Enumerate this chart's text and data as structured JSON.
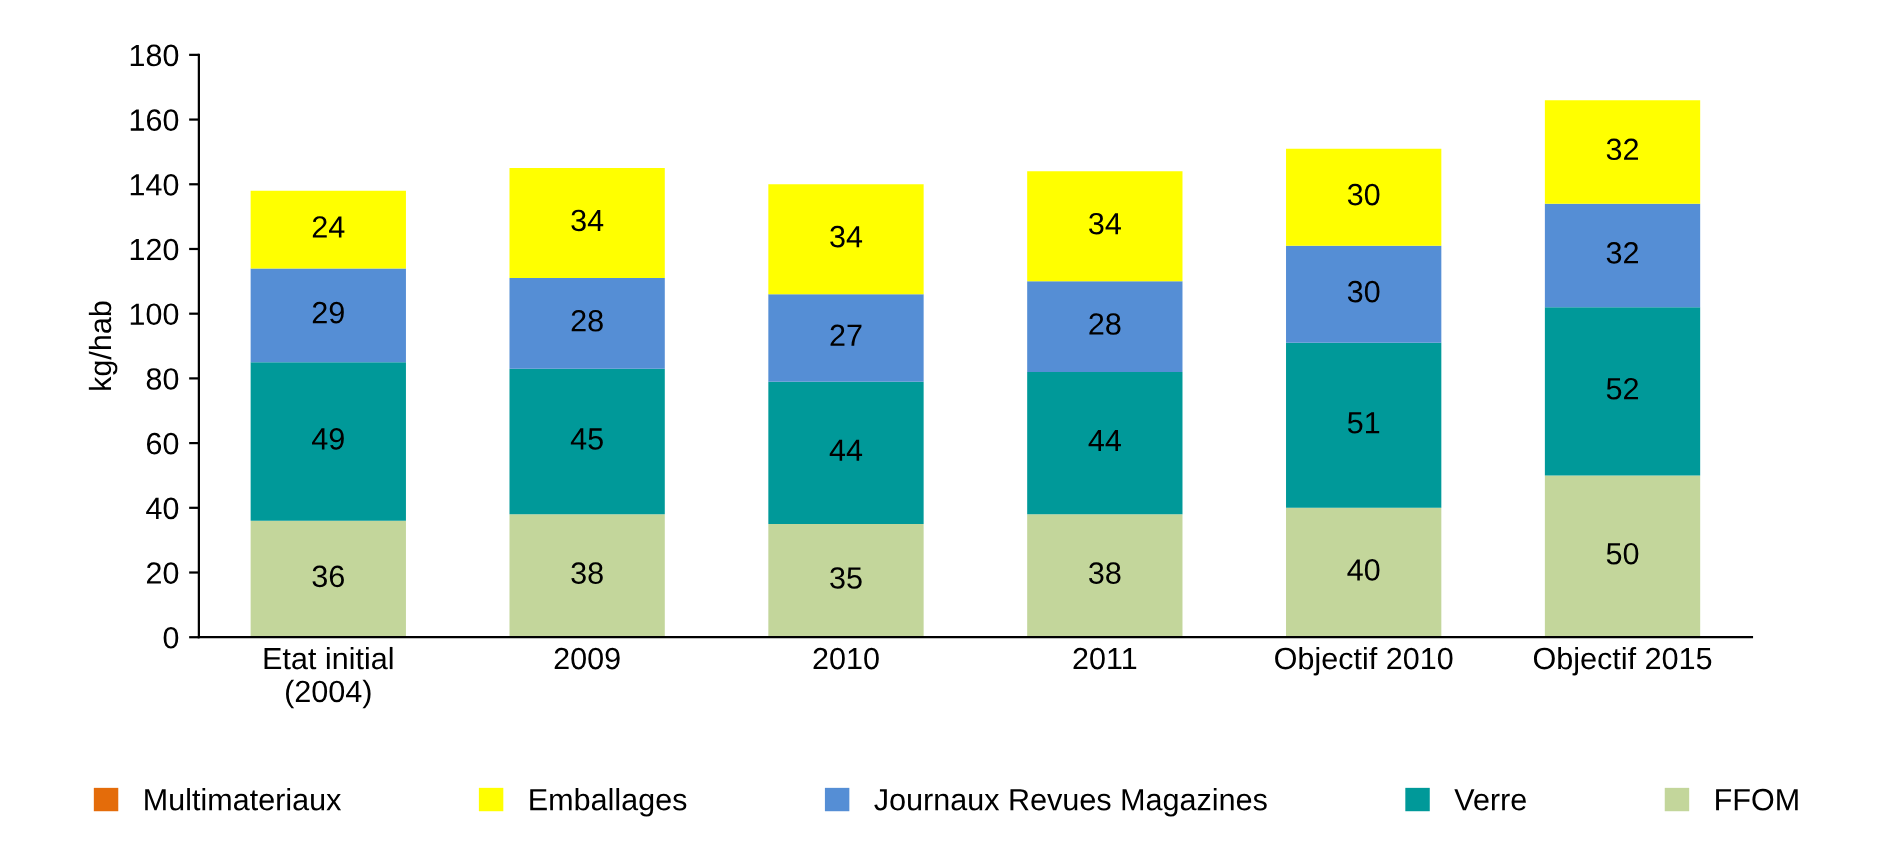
{
  "chart_data": {
    "type": "bar",
    "stacked": true,
    "ylabel": "kg/hab",
    "categories": [
      "Etat initial\n(2004)",
      "2009",
      "2010",
      "2011",
      "Objectif 2010",
      "Objectif 2015"
    ],
    "series": [
      {
        "name": "FFOM",
        "color": "#c3d69b",
        "values": [
          36,
          38,
          35,
          38,
          40,
          50
        ]
      },
      {
        "name": "Verre",
        "color": "#009999",
        "values": [
          49,
          45,
          44,
          44,
          51,
          52
        ]
      },
      {
        "name": "Journaux Revues Magazines",
        "color": "#558ed5",
        "values": [
          29,
          28,
          27,
          28,
          30,
          32
        ]
      },
      {
        "name": "Emballages",
        "color": "#ffff00",
        "values": [
          24,
          34,
          34,
          34,
          30,
          32
        ]
      },
      {
        "name": "Multimateriaux",
        "color": "#e46c0a",
        "values": [
          null,
          null,
          null,
          null,
          null,
          null
        ]
      }
    ],
    "ylim": [
      0,
      180
    ],
    "yticks": [
      0,
      20,
      40,
      60,
      80,
      100,
      120,
      140,
      160,
      180
    ],
    "data_labels": true,
    "legend": "bottom",
    "grid": false
  }
}
